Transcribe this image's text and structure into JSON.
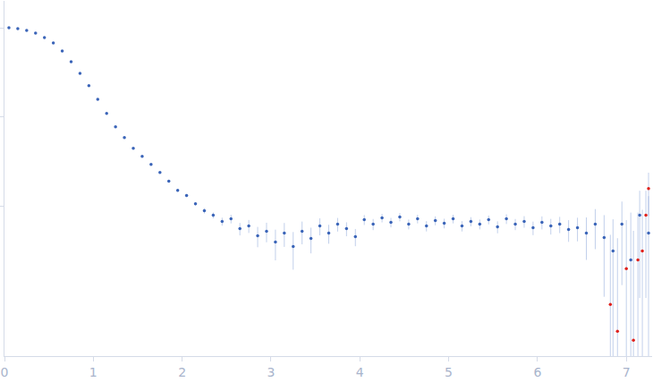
{
  "chart_data": {
    "type": "scatter",
    "log": "y",
    "grid": false,
    "tick_labels": "x",
    "marker": "circle",
    "xlim": [
      0,
      7.29
    ],
    "xticks": [
      0,
      1,
      2,
      3,
      4,
      5,
      6,
      7
    ],
    "ylim": [
      0.00021,
      2
    ],
    "yticks": [
      0.01,
      0.1,
      1
    ],
    "series": [
      {
        "color": "#3a64b8",
        "x": [
          0.05,
          0.15,
          0.25,
          0.35,
          0.45,
          0.55,
          0.65,
          0.75,
          0.85,
          0.95,
          1.05,
          1.15,
          1.25,
          1.35,
          1.45,
          1.55,
          1.65,
          1.75,
          1.85,
          1.95,
          2.05,
          2.15,
          2.25,
          2.35,
          2.45,
          2.55,
          2.65,
          2.75,
          2.85,
          2.95,
          3.05,
          3.15,
          3.25,
          3.35,
          3.45,
          3.55,
          3.65,
          3.75,
          3.85,
          3.95,
          4.05,
          4.15,
          4.25,
          4.35,
          4.45,
          4.55,
          4.65,
          4.75,
          4.85,
          4.95,
          5.05,
          5.15,
          5.25,
          5.35,
          5.45,
          5.55,
          5.65,
          5.75,
          5.85,
          5.95,
          6.05,
          6.15,
          6.25,
          6.35,
          6.45,
          6.55,
          6.65,
          6.75,
          6.85,
          6.95,
          7.05,
          7.15,
          7.25
        ],
        "values": [
          1.0,
          0.977,
          0.933,
          0.871,
          0.776,
          0.676,
          0.55,
          0.417,
          0.309,
          0.224,
          0.158,
          0.11,
          0.0776,
          0.0589,
          0.0447,
          0.0363,
          0.0295,
          0.024,
          0.0191,
          0.0151,
          0.0132,
          0.0107,
          0.00891,
          0.00794,
          0.00676,
          0.00724,
          0.00562,
          0.00603,
          0.00468,
          0.00525,
          0.00398,
          0.00501,
          0.00355,
          0.00525,
          0.00437,
          0.00603,
          0.00501,
          0.00631,
          0.00562,
          0.00457,
          0.00708,
          0.00631,
          0.00741,
          0.00661,
          0.00759,
          0.00631,
          0.00724,
          0.00603,
          0.00692,
          0.00646,
          0.00724,
          0.00603,
          0.00676,
          0.00631,
          0.00708,
          0.00589,
          0.00724,
          0.00631,
          0.00676,
          0.00575,
          0.00661,
          0.00603,
          0.00631,
          0.0055,
          0.00575,
          0.00501,
          0.00631,
          0.00447,
          0.00316,
          0.00631,
          0.00251,
          0.00794,
          0.00501
        ],
        "errors": [
          0.01,
          0.008,
          0.007,
          0.006,
          0.005,
          0.004,
          0.003,
          0.0025,
          0.002,
          0.0015,
          0.0012,
          0.001,
          0.0008,
          0.0007,
          0.0006,
          0.0006,
          0.0005,
          0.0005,
          0.0005,
          0.0005,
          0.0005,
          0.0005,
          0.0006,
          0.0006,
          0.0007,
          0.0008,
          0.0009,
          0.001,
          0.0012,
          0.0013,
          0.0015,
          0.0015,
          0.0016,
          0.0015,
          0.0014,
          0.0013,
          0.0012,
          0.0011,
          0.001,
          0.001,
          0.0009,
          0.0009,
          0.0008,
          0.0008,
          0.0008,
          0.0008,
          0.0008,
          0.0008,
          0.0008,
          0.0008,
          0.0008,
          0.0008,
          0.0008,
          0.0008,
          0.0008,
          0.0009,
          0.0009,
          0.0009,
          0.001,
          0.001,
          0.0011,
          0.0012,
          0.0013,
          0.0015,
          0.0017,
          0.0025,
          0.003,
          0.0035,
          0.004,
          0.005,
          0.006,
          0.007,
          0.008
        ]
      },
      {
        "color": "#e0201b",
        "x": [
          6.82,
          6.9,
          7.0,
          7.08,
          7.13,
          7.18,
          7.22,
          7.25
        ],
        "values": [
          0.000794,
          0.000398,
          0.002,
          0.000316,
          0.00251,
          0.00316,
          0.00794,
          0.0158
        ],
        "errors": [
          0.004,
          0.004,
          0.005,
          0.005,
          0.006,
          0.006,
          0.007,
          0.008
        ]
      }
    ]
  }
}
